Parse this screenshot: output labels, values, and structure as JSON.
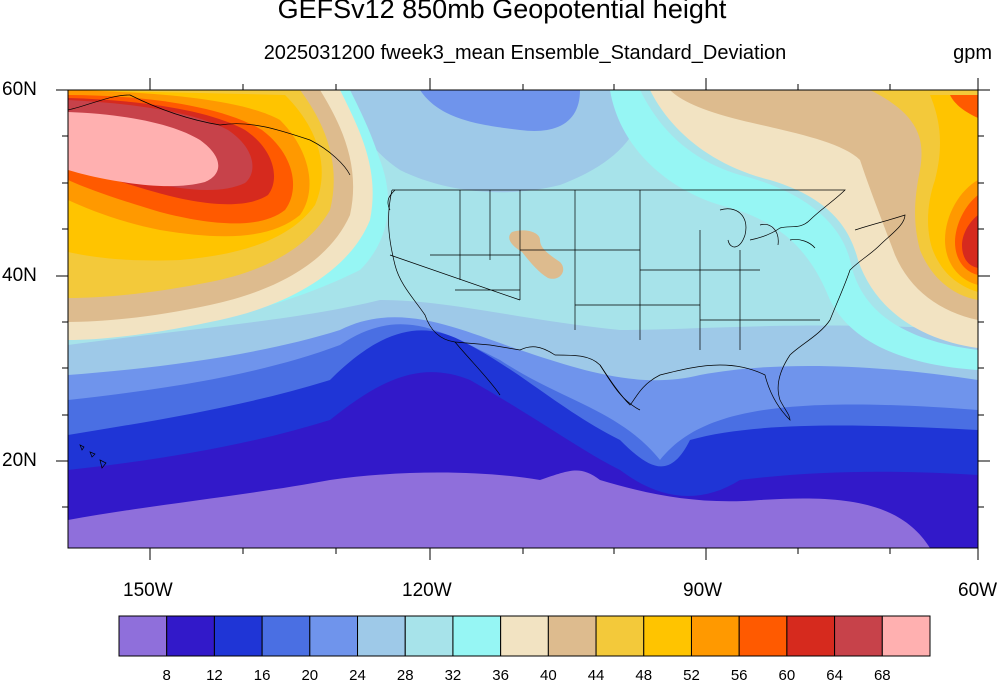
{
  "title": "GEFSv12 850mb Geopotential height",
  "subtitle": "2025031200 fweek3_mean Ensemble_Standard_Deviation",
  "units": "gpm",
  "lat_labels": [
    "60N",
    "40N",
    "20N"
  ],
  "lon_labels": [
    "150W",
    "120W",
    "90W",
    "60W"
  ],
  "colorbar": {
    "colors": [
      "#8f6fdb",
      "#3219c9",
      "#1f35d6",
      "#4a6fe3",
      "#6f94ec",
      "#9ec9e8",
      "#a7e3ea",
      "#96f6f4",
      "#f2e3c2",
      "#ddbb8e",
      "#f3c93a",
      "#ffc400",
      "#ff9900",
      "#ff5a00",
      "#d62a1e",
      "#c7424a",
      "#ffb0b0"
    ],
    "labels": [
      "8",
      "12",
      "16",
      "20",
      "24",
      "28",
      "32",
      "36",
      "40",
      "44",
      "48",
      "52",
      "56",
      "60",
      "64",
      "68"
    ]
  },
  "map_extent": {
    "lon_min": -160,
    "lon_max": -60,
    "lat_min": 10,
    "lat_max": 60
  }
}
